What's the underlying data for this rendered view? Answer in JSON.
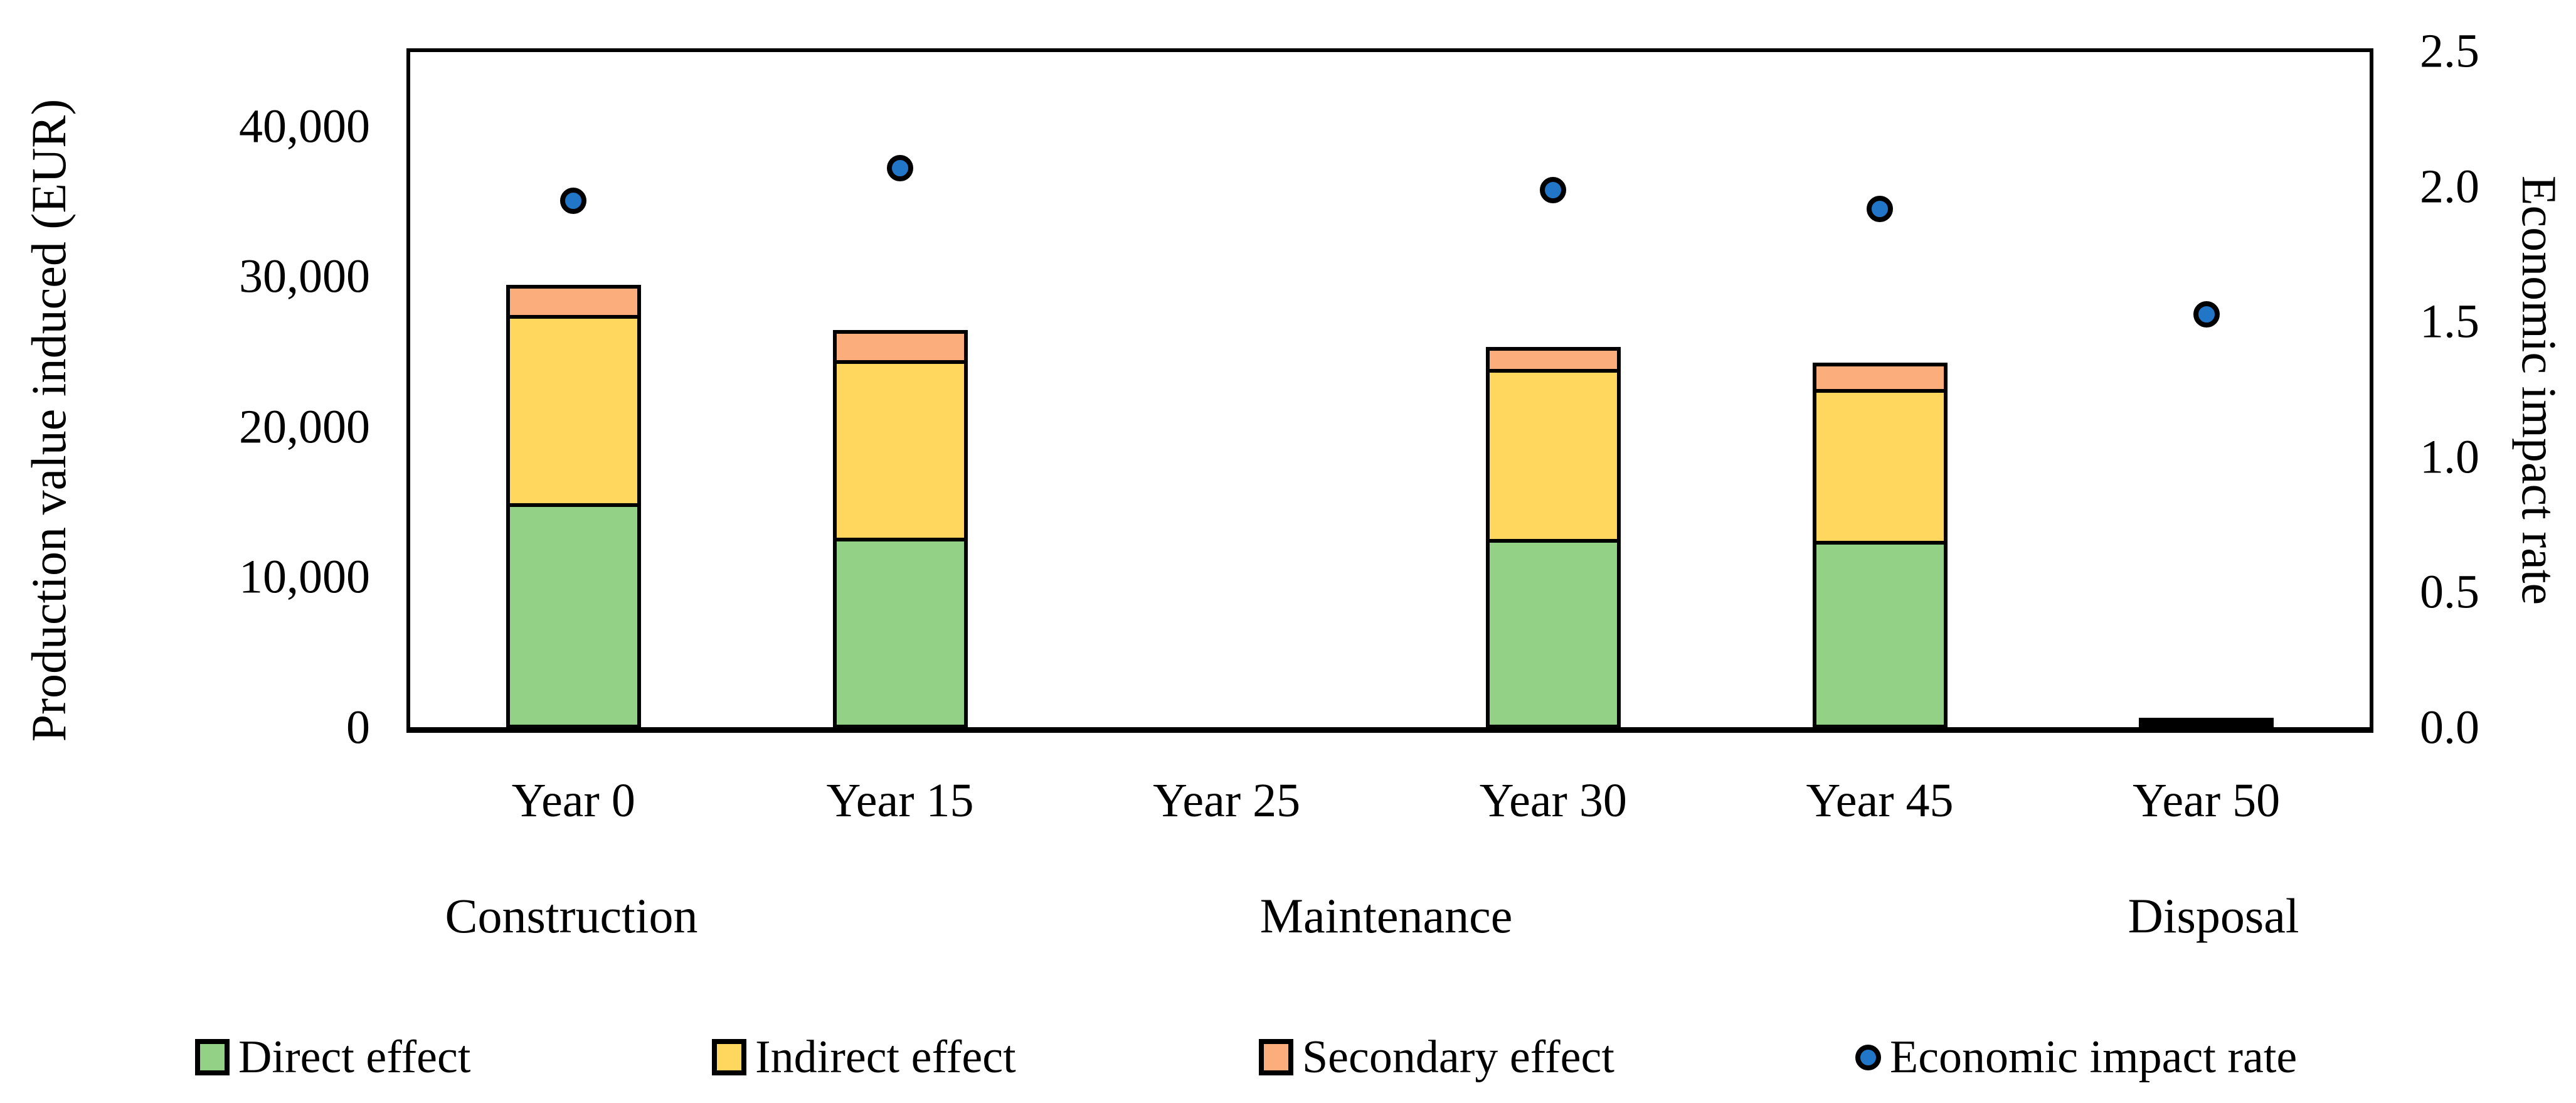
{
  "figure": {
    "background": "#FFFFFF",
    "line_color": "#000000"
  },
  "chart_data": {
    "type": "combo-stacked-bar-scatter",
    "categories": [
      "Year 0",
      "Year 15",
      "Year 25",
      "Year 30",
      "Year 45",
      "Year 50"
    ],
    "stacked_series": [
      {
        "name": "Direct effect",
        "color": "#92D186",
        "values": [
          15000,
          12700,
          0,
          12600,
          12500,
          350
        ]
      },
      {
        "name": "Indirect effect",
        "color": "#FFD75F",
        "values": [
          12500,
          11800,
          0,
          11300,
          10100,
          100
        ]
      },
      {
        "name": "Secondary effect",
        "color": "#FBAE7B",
        "values": [
          2000,
          2000,
          0,
          1500,
          1750,
          250
        ]
      }
    ],
    "scatter_series": {
      "name": "Economic impact rate",
      "color": "#2176C7",
      "values": [
        1.95,
        2.07,
        null,
        1.99,
        1.92,
        1.53
      ]
    },
    "left_axis": {
      "title": "Production value induced (EUR)",
      "min": 0,
      "max": 45000,
      "tick_interval": 10000,
      "tick_labels": [
        "0",
        "10,000",
        "20,000",
        "30,000",
        "40,000"
      ]
    },
    "right_axis": {
      "title": "Economic impact rate",
      "min": 0,
      "max": 2.5,
      "tick_interval": 0.5,
      "tick_labels": [
        "0.0",
        "0.5",
        "1.0",
        "1.5",
        "2.0",
        "2.5"
      ]
    },
    "phase_groups": [
      {
        "label": "Construction",
        "categories": [
          "Year 0",
          "Year 15"
        ]
      },
      {
        "label": "Maintenance",
        "categories": [
          "Year 25",
          "Year 30",
          "Year 45"
        ]
      },
      {
        "label": "Disposal",
        "categories": [
          "Year 50"
        ]
      }
    ],
    "grid": "off",
    "legend_position": "bottom"
  },
  "legend": {
    "items": [
      {
        "label": "Direct effect",
        "swatch": "square",
        "color": "#92D186"
      },
      {
        "label": "Indirect effect",
        "swatch": "square",
        "color": "#FFD75F"
      },
      {
        "label": "Secondary effect",
        "swatch": "square",
        "color": "#FBAE7B"
      },
      {
        "label": "Economic impact rate",
        "swatch": "dot",
        "color": "#2176C7"
      }
    ]
  }
}
